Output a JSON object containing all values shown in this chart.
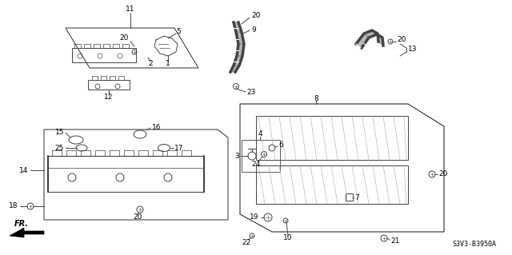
{
  "background_color": "#ffffff",
  "diagram_code": "S3V3-B3950A",
  "line_color": "#444444",
  "text_color": "#000000",
  "font_size": 6.5,
  "lw": 0.7
}
